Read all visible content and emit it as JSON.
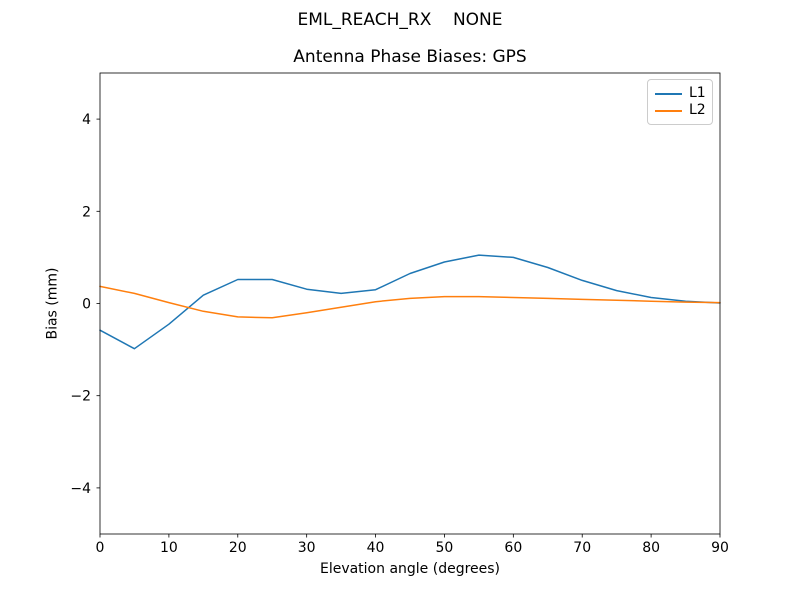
{
  "figure": {
    "suptitle": "EML_REACH_RX    NONE"
  },
  "chart_data": {
    "type": "line",
    "title": "Antenna Phase Biases: GPS",
    "xlabel": "Elevation angle (degrees)",
    "ylabel": "Bias (mm)",
    "xlim": [
      0,
      90
    ],
    "ylim": [
      -5,
      5
    ],
    "xticks": [
      0,
      10,
      20,
      30,
      40,
      50,
      60,
      70,
      80,
      90
    ],
    "yticks": [
      -4,
      -2,
      0,
      2,
      4
    ],
    "grid": false,
    "legend_position": "upper right",
    "x": [
      0,
      5,
      10,
      15,
      20,
      25,
      30,
      35,
      40,
      45,
      50,
      55,
      60,
      65,
      70,
      75,
      80,
      85,
      90
    ],
    "series": [
      {
        "name": "L1",
        "color": "#1f77b4",
        "values": [
          -0.58,
          -0.98,
          -0.45,
          0.18,
          0.52,
          0.52,
          0.31,
          0.22,
          0.3,
          0.65,
          0.9,
          1.05,
          1.0,
          0.78,
          0.5,
          0.28,
          0.13,
          0.05,
          0.01
        ]
      },
      {
        "name": "L2",
        "color": "#ff7f0e",
        "values": [
          0.37,
          0.22,
          0.02,
          -0.17,
          -0.29,
          -0.31,
          -0.2,
          -0.08,
          0.04,
          0.11,
          0.15,
          0.15,
          0.13,
          0.11,
          0.09,
          0.07,
          0.05,
          0.03,
          0.02
        ]
      }
    ]
  }
}
